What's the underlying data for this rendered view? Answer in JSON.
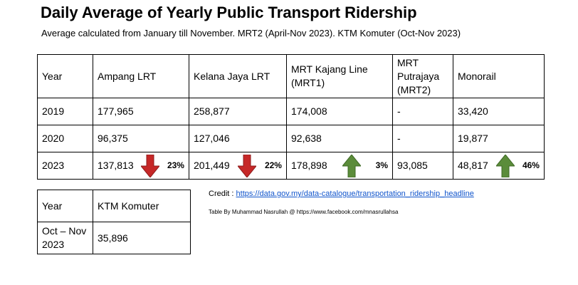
{
  "title": "Daily Average of Yearly Public Transport Ridership",
  "subtitle": "Average calculated from January till November. MRT2 (April-Nov 2023). KTM Komuter (Oct-Nov 2023)",
  "table": {
    "headers": [
      "Year",
      "Ampang LRT",
      "Kelana Jaya LRT",
      "MRT Kajang Line (MRT1)",
      "MRT Putrajaya (MRT2)",
      "Monorail"
    ],
    "rows": [
      [
        "2019",
        "177,965",
        "258,877",
        "174,008",
        "-",
        "33,420"
      ],
      [
        "2020",
        "96,375",
        "127,046",
        "92,638",
        "-",
        "19,877"
      ],
      [
        "2023",
        {
          "value": "137,813",
          "change": "23%",
          "direction": "down"
        },
        {
          "value": "201,449",
          "change": "22%",
          "direction": "down"
        },
        {
          "value": "178,898",
          "change": "3%",
          "direction": "up"
        },
        "93,085",
        {
          "value": "48,817",
          "change": "46%",
          "direction": "up"
        }
      ]
    ]
  },
  "table2": {
    "headers": [
      "Year",
      "KTM Komuter"
    ],
    "rows": [
      [
        "Oct – Nov 2023",
        "35,896"
      ]
    ]
  },
  "credit": {
    "label": "Credit :",
    "link": "https://data.gov.my/data-catalogue/transportation_ridership_headline"
  },
  "byline": "Table By Muhammad Nasrullah @ https://www.facebook.com/mnasrullahsa"
}
